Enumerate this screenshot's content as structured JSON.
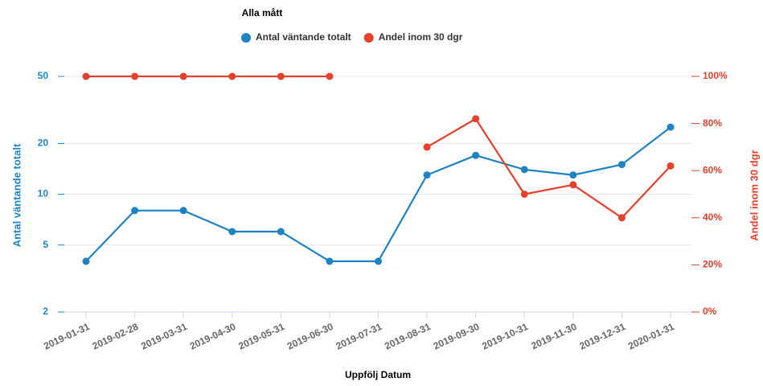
{
  "chart_data": {
    "type": "line",
    "title": "Alla mått",
    "x_label": "Uppfölj Datum",
    "y_label": "Antal väntande totalt",
    "y2_label": "Andel inom 30 dgr",
    "categories": [
      "2019-01-31",
      "2019-02-28",
      "2019-03-31",
      "2019-04-30",
      "2019-05-31",
      "2019-06-30",
      "2019-07-31",
      "2019-08-31",
      "2019-09-30",
      "2019-10-31",
      "2019-11-30",
      "2019-12-31",
      "2020-01-31"
    ],
    "series": [
      {
        "name": "Antal väntande totalt",
        "color": "#1f83c3",
        "values": [
          4,
          8,
          8,
          6,
          6,
          4,
          4,
          13,
          17,
          14,
          13,
          15,
          25
        ]
      },
      {
        "name": "Andel inom 30 dgr",
        "color": "#e5412d",
        "axis": "y2",
        "values": [
          100,
          100,
          100,
          100,
          100,
          100,
          null,
          70,
          82,
          50,
          54,
          40,
          62
        ]
      }
    ],
    "ylim": [
      2,
      50
    ],
    "yscale": "log",
    "yticks": [
      2,
      5,
      10,
      20,
      50
    ],
    "y2lim": [
      0,
      100
    ],
    "y2ticks": [
      {
        "value": 0,
        "label": "0%"
      },
      {
        "value": 20,
        "label": "20%"
      },
      {
        "value": 40,
        "label": "40%"
      },
      {
        "value": 60,
        "label": "60%"
      },
      {
        "value": 80,
        "label": "80%"
      },
      {
        "value": 100,
        "label": "100%"
      }
    ],
    "grid": true,
    "legend": "top"
  }
}
